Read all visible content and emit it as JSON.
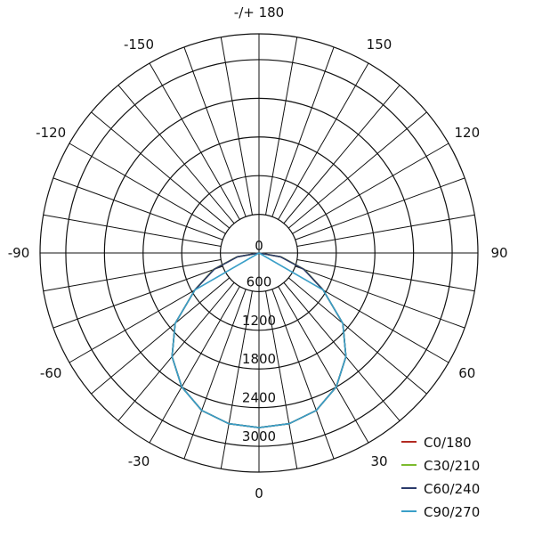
{
  "chart_data": {
    "type": "polar",
    "radial_ticks": [
      0,
      600,
      1200,
      1800,
      2400,
      3000
    ],
    "radial_max": 3400,
    "angle_labels": [
      {
        "angle": 0,
        "label": "0"
      },
      {
        "angle": 30,
        "label": "30"
      },
      {
        "angle": 60,
        "label": "60"
      },
      {
        "angle": 90,
        "label": "90"
      },
      {
        "angle": 120,
        "label": "120"
      },
      {
        "angle": 150,
        "label": "150"
      },
      {
        "angle": 180,
        "label": "-/+ 180"
      },
      {
        "angle": -150,
        "label": "-150"
      },
      {
        "angle": -120,
        "label": "-120"
      },
      {
        "angle": -90,
        "label": "-90"
      },
      {
        "angle": -60,
        "label": "-60"
      },
      {
        "angle": -30,
        "label": "-30"
      }
    ],
    "grid": true,
    "legend_position": "bottom-right",
    "angles": [
      0,
      10,
      20,
      30,
      40,
      50,
      60,
      70,
      80,
      90
    ],
    "series": [
      {
        "name": "C0/180",
        "color": "#b22a22",
        "values": [
          2710,
          2690,
          2600,
          2400,
          2100,
          1700,
          1150,
          750,
          350,
          0
        ]
      },
      {
        "name": "C30/210",
        "color": "#7cbb2e",
        "values": [
          2710,
          2690,
          2600,
          2400,
          2100,
          1700,
          1150,
          750,
          350,
          0
        ]
      },
      {
        "name": "C60/240",
        "color": "#2a3a6a",
        "values": [
          2710,
          2690,
          2600,
          2400,
          2100,
          1700,
          1150,
          740,
          340,
          0
        ]
      },
      {
        "name": "C90/270",
        "color": "#3a9fc8",
        "values": [
          2710,
          2690,
          2600,
          2400,
          2100,
          1700,
          1150,
          0,
          0,
          0
        ]
      }
    ]
  }
}
